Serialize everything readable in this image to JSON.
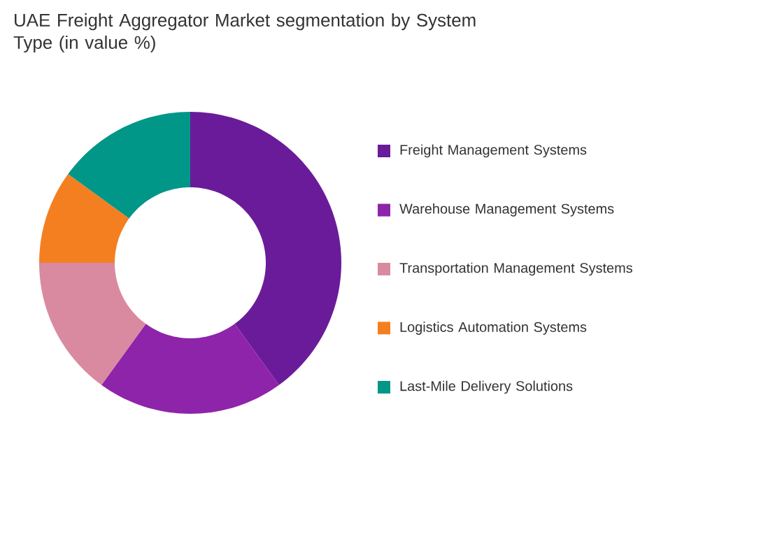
{
  "chart_data": {
    "type": "donut",
    "title": "UAE Freight Aggregator Market segmentation by System Type (in value %)",
    "categories": [
      "Freight Management Systems",
      "Warehouse Management Systems",
      "Transportation Management Systems",
      "Logistics Automation Systems",
      "Last-Mile Delivery Solutions"
    ],
    "values": [
      40,
      20,
      15,
      10,
      15
    ],
    "colors": [
      "#6a1b9a",
      "#8e24aa",
      "#d98aa0",
      "#f47f20",
      "#009688"
    ],
    "legend": "right"
  }
}
